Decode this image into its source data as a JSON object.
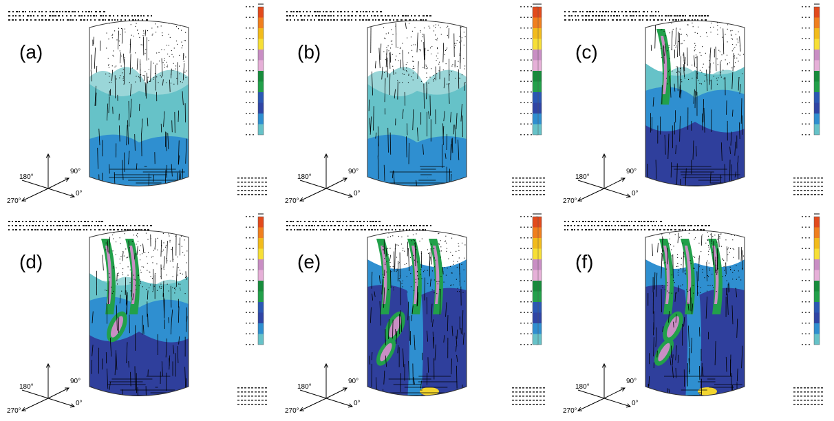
{
  "palette": [
    "#66c2c8",
    "#2f8fd0",
    "#2f45a5",
    "#2a58b4",
    "#22a04a",
    "#178c3c",
    "#e6b0d8",
    "#c98ec4",
    "#f7df36",
    "#f2bb1c",
    "#f07f1e",
    "#e24a1c"
  ],
  "cylinder_colors": {
    "pale": "#9ad6d8",
    "teal": "#66c2c8",
    "blue": "#2f8fd0",
    "navy": "#2f3f9c",
    "green": "#22a04a",
    "pink": "#c98ec4",
    "yellow": "#f2d530"
  },
  "panels": [
    {
      "label": "(a)",
      "col": 0,
      "row": 0,
      "bottom": "teal_blue",
      "bands": 0,
      "bar_side": "right"
    },
    {
      "label": "(b)",
      "col": 1,
      "row": 0,
      "bottom": "teal_blue",
      "bands": 0,
      "bar_side": "right"
    },
    {
      "label": "(c)",
      "col": 2,
      "row": 0,
      "bottom": "blue_navy",
      "bands": 1,
      "bar_side": "both"
    },
    {
      "label": "(d)",
      "col": 0,
      "row": 1,
      "bottom": "blue_navy",
      "bands": 2,
      "bar_side": "right"
    },
    {
      "label": "(e)",
      "col": 1,
      "row": 1,
      "bottom": "navy",
      "bands": 3,
      "bar_side": "right"
    },
    {
      "label": "(f)",
      "col": 2,
      "row": 1,
      "bottom": "navy",
      "bands": 3,
      "bar_side": "both"
    }
  ],
  "axes": {
    "label_0": "0°",
    "label_90": "90°",
    "label_180": "180°",
    "label_270": "270°"
  }
}
